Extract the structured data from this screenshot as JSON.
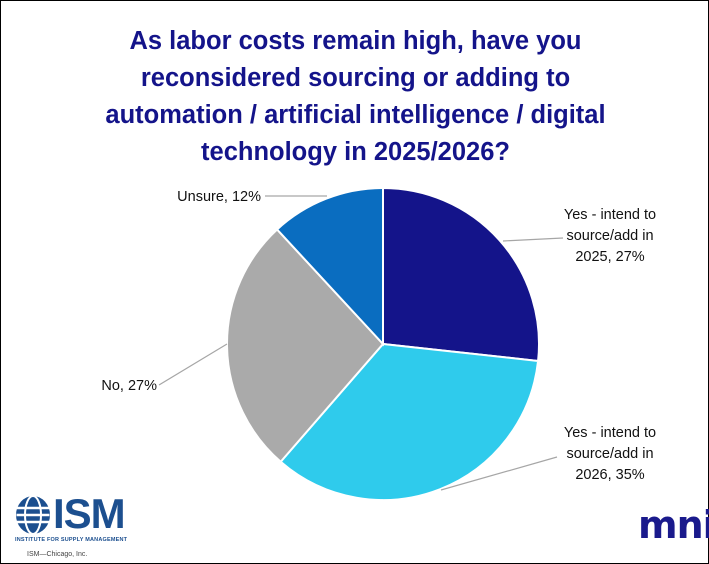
{
  "chart_data": {
    "type": "pie",
    "title": "As labor costs remain high, have you reconsidered sourcing or adding to automation / artificial intelligence / digital technology in 2025/2026?",
    "title_lines": [
      "As labor costs remain high, have you",
      "reconsidered sourcing or adding to",
      "automation / artificial intelligence / digital",
      "technology in 2025/2026?"
    ],
    "slices": [
      {
        "label_lines": [
          "Yes - intend to",
          "source/add in",
          "2025, 27%"
        ],
        "value": 27,
        "color": "#14148a"
      },
      {
        "label_lines": [
          "Yes - intend to",
          "source/add in",
          "2026, 35%"
        ],
        "value": 35,
        "color": "#2fcbec"
      },
      {
        "label_lines": [
          "No, 27%"
        ],
        "value": 27,
        "color": "#aaaaaa"
      },
      {
        "label_lines": [
          "Unsure, 12%"
        ],
        "value": 12,
        "color": "#0a6dc0"
      }
    ],
    "start_angle_deg": 0,
    "direction": "clockwise"
  },
  "logos": {
    "ism_word": "ISM",
    "ism_sub": "INSTITUTE FOR SUPPLY MANAGEMENT",
    "ism_copy": "ISM—Chicago, Inc.",
    "mni": "mni"
  }
}
